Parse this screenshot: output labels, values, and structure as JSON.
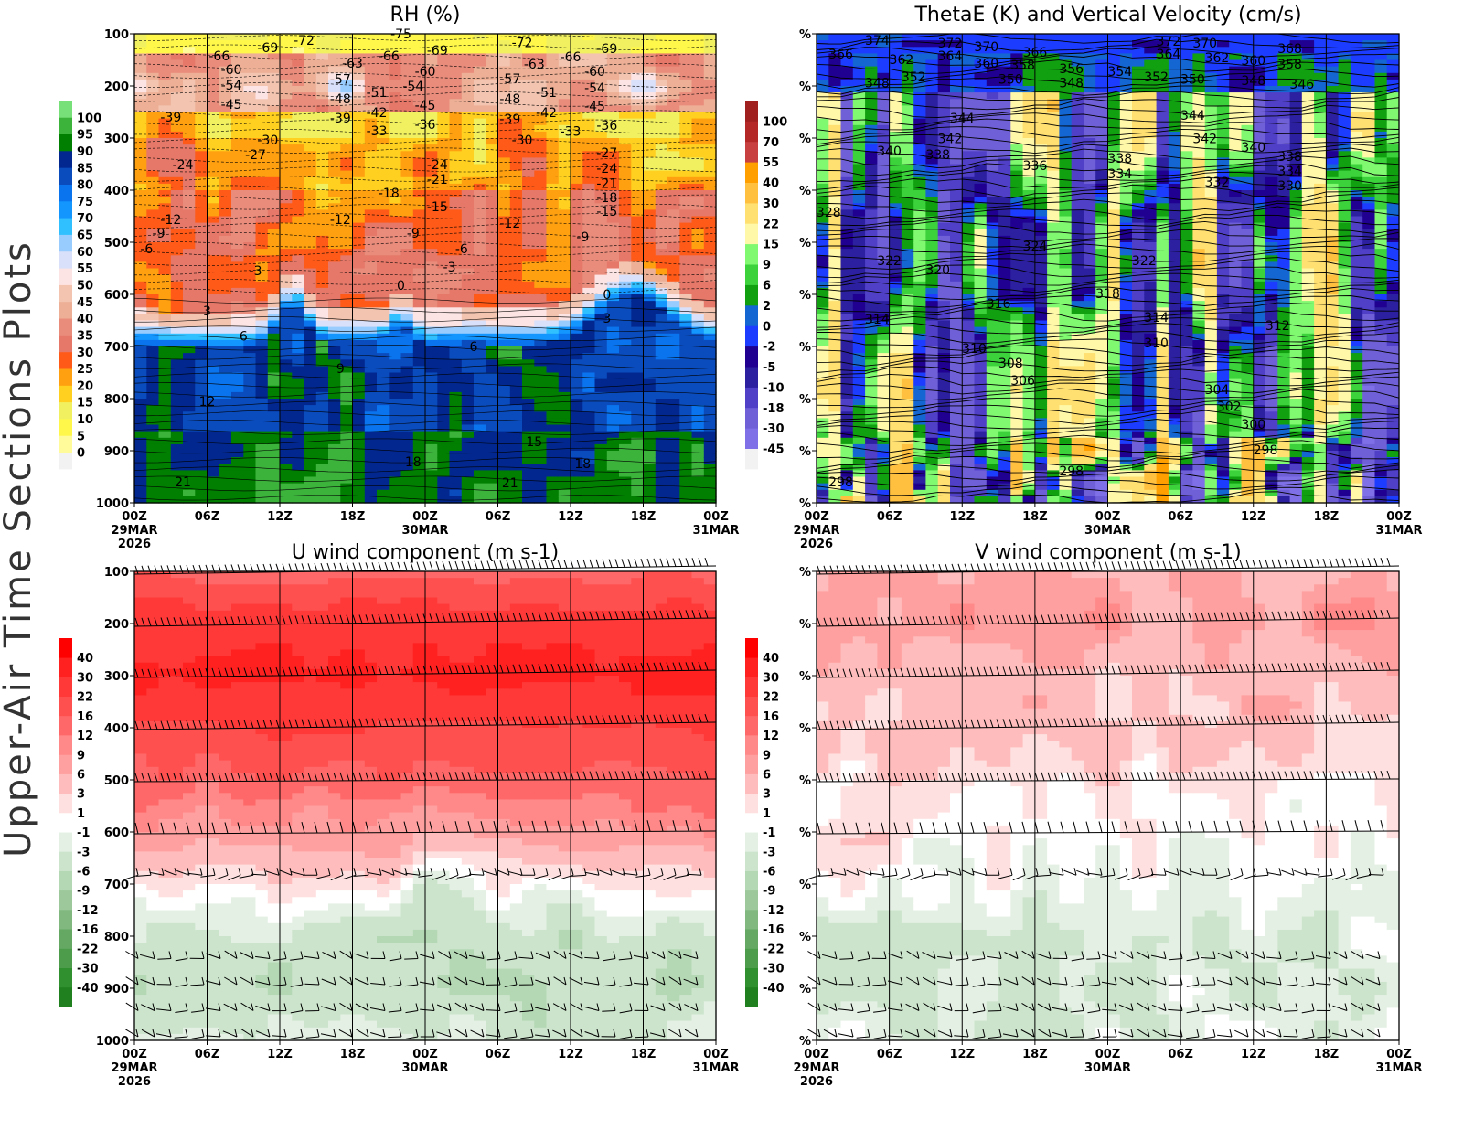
{
  "side_title": "Upper-Air Time Sections Plots",
  "x_ticks": [
    {
      "label": "00Z",
      "date": "29MAR",
      "year": "2026"
    },
    {
      "label": "06Z"
    },
    {
      "label": "12Z"
    },
    {
      "label": "18Z"
    },
    {
      "label": "00Z",
      "date": "30MAR"
    },
    {
      "label": "06Z"
    },
    {
      "label": "12Z"
    },
    {
      "label": "18Z"
    },
    {
      "label": "00Z",
      "date": "31MAR"
    }
  ],
  "pressure_levels": [
    100,
    200,
    300,
    400,
    500,
    600,
    700,
    800,
    900,
    1000
  ],
  "colors": {
    "contour": "#000000",
    "grid": "#000000"
  },
  "chart_data": [
    {
      "type": "heatmap",
      "title": "RH (%)",
      "field": "relative humidity",
      "overlay": "temperature contours (dashed below 0)",
      "ylim": [
        1000,
        100
      ],
      "y_tick_labels": [
        "100",
        "200",
        "300",
        "400",
        "500",
        "600",
        "700",
        "800",
        "900",
        "1000"
      ],
      "colorbar": {
        "levels": [
          0,
          5,
          10,
          15,
          20,
          25,
          30,
          35,
          40,
          45,
          50,
          55,
          60,
          65,
          70,
          75,
          80,
          85,
          90,
          95,
          100
        ],
        "colors": [
          "#f2f2f2",
          "#fffb9a",
          "#fff84a",
          "#f0f060",
          "#ffd020",
          "#ffa010",
          "#ff5a18",
          "#e57868",
          "#ea8c7c",
          "#edb096",
          "#f3c4b0",
          "#fde4e4",
          "#d8e0fa",
          "#98ccff",
          "#30c0ff",
          "#1496ff",
          "#0a74ee",
          "#0a4cbe",
          "#022890",
          "#007f00",
          "#3cb43c",
          "#78e078"
        ]
      },
      "contour_labels": [
        [
          "29 14Z",
          114,
          -72
        ],
        [
          "29 11Z",
          128,
          -69
        ],
        [
          "29 07Z",
          144,
          -66
        ],
        [
          "29 08Z",
          170,
          -60
        ],
        [
          "29 08Z",
          200,
          -54
        ],
        [
          "29 08Z",
          237,
          -45
        ],
        [
          "29 03Z",
          261,
          -39
        ],
        [
          "29 11Z",
          305,
          -30
        ],
        [
          "29 10Z",
          333,
          -27
        ],
        [
          "29 04Z",
          353,
          -24
        ],
        [
          "29 03Z",
          458,
          -12
        ],
        [
          "29 02Z",
          484,
          -9
        ],
        [
          "29 01Z",
          514,
          -6
        ],
        [
          "29 10Z",
          556,
          -3
        ],
        [
          "29 06Z",
          633,
          3
        ],
        [
          "29 09Z",
          682,
          6
        ],
        [
          "29 17Z",
          744,
          9
        ],
        [
          "29 06Z",
          807,
          12
        ],
        [
          "29 04Z",
          961,
          21
        ],
        [
          "29 18Z",
          158,
          -63
        ],
        [
          "29 17Z",
          189,
          -57
        ],
        [
          "29 17Z",
          226,
          -48
        ],
        [
          "29 17Z",
          263,
          -39
        ],
        [
          "29 20Z",
          214,
          -51
        ],
        [
          "29 20Z",
          253,
          -42
        ],
        [
          "29 20Z",
          288,
          -33
        ],
        [
          "29 21Z",
          144,
          -66
        ],
        [
          "29 22Z",
          102,
          -75
        ],
        [
          "30 01Z",
          133,
          -69
        ],
        [
          "30 00Z",
          174,
          -60
        ],
        [
          "29 23Z",
          202,
          -54
        ],
        [
          "30 00Z",
          239,
          -45
        ],
        [
          "30 00Z",
          275,
          -36
        ],
        [
          "30 01Z",
          353,
          -24
        ],
        [
          "30 01Z",
          381,
          -21
        ],
        [
          "29 21Z",
          407,
          -18
        ],
        [
          "30 01Z",
          433,
          -15
        ],
        [
          "29 17Z",
          458,
          -12
        ],
        [
          "29 23Z",
          484,
          -9
        ],
        [
          "30 03Z",
          514,
          -6
        ],
        [
          "30 02Z",
          549,
          -3
        ],
        [
          "29 22Z",
          584,
          0
        ],
        [
          "29 23Z",
          923,
          18
        ],
        [
          "30 04Z",
          702,
          6
        ],
        [
          "30 09Z",
          884,
          15
        ],
        [
          "30 07Z",
          963,
          21
        ],
        [
          "30 13Z",
          926,
          18
        ],
        [
          "30 15Z",
          602,
          0
        ],
        [
          "30 15Z",
          647,
          3
        ],
        [
          "30 08Z",
          118,
          -72
        ],
        [
          "30 07Z",
          188,
          -57
        ],
        [
          "30 07Z",
          226,
          -48
        ],
        [
          "30 07Z",
          265,
          -39
        ],
        [
          "30 08Z",
          305,
          -30
        ],
        [
          "30 09Z",
          160,
          -63
        ],
        [
          "30 10Z",
          214,
          -51
        ],
        [
          "30 10Z",
          253,
          -42
        ],
        [
          "30 12Z",
          289,
          -33
        ],
        [
          "30 12Z",
          146,
          -66
        ],
        [
          "30 14Z",
          174,
          -60
        ],
        [
          "30 14Z",
          205,
          -54
        ],
        [
          "30 14Z",
          240,
          -45
        ],
        [
          "30 15Z",
          277,
          -36
        ],
        [
          "30 15Z",
          330,
          -27
        ],
        [
          "30 15Z",
          360,
          -24
        ],
        [
          "30 15Z",
          389,
          -21
        ],
        [
          "30 15Z",
          416,
          -18
        ],
        [
          "30 15Z",
          442,
          -15
        ],
        [
          "30 13Z",
          491,
          -9
        ],
        [
          "30 07Z",
          465,
          -12
        ],
        [
          "30 15Z",
          130,
          -69
        ]
      ]
    },
    {
      "type": "heatmap",
      "title": "ThetaE (K) and Vertical Velocity (cm/s)",
      "field": "vertical velocity",
      "overlay": "equivalent potential temperature contours",
      "ylim": [
        1000,
        100
      ],
      "y_tick_labels": [
        "%",
        "%",
        "%",
        "%",
        "%",
        "%",
        "%",
        "%",
        "%",
        "%"
      ],
      "colorbar": {
        "levels": [
          -45,
          -30,
          -18,
          -10,
          -5,
          -2,
          0,
          2,
          6,
          9,
          15,
          22,
          30,
          40,
          55,
          70,
          100
        ],
        "colors": [
          "#f2f2f2",
          "#8070e8",
          "#7060d8",
          "#5040c8",
          "#2c20a0",
          "#200090",
          "#1c3cff",
          "#1466d2",
          "#10a010",
          "#3cd23c",
          "#80f870",
          "#fff8a8",
          "#ffe070",
          "#ffc040",
          "#ffa000",
          "#c84040",
          "#b42828",
          "#a02020"
        ]
      },
      "contour_labels": [
        [
          "29 05Z",
          114,
          374
        ],
        [
          "29 02Z",
          140,
          366
        ],
        [
          "29 07Z",
          151,
          362
        ],
        [
          "29 05Z",
          196,
          348
        ],
        [
          "29 08Z",
          184,
          352
        ],
        [
          "29 11Z",
          119,
          372
        ],
        [
          "29 14Z",
          126,
          370
        ],
        [
          "29 11Z",
          144,
          364
        ],
        [
          "29 14Z",
          158,
          360
        ],
        [
          "29 18Z",
          137,
          366
        ],
        [
          "29 17Z",
          161,
          358
        ],
        [
          "29 16Z",
          189,
          350
        ],
        [
          "29 21Z",
          168,
          356
        ],
        [
          "29 21Z",
          196,
          348
        ],
        [
          "30 01Z",
          174,
          354
        ],
        [
          "30 04Z",
          184,
          352
        ],
        [
          "30 07Z",
          189,
          350
        ],
        [
          "30 05Z",
          116,
          372
        ],
        [
          "30 08Z",
          119,
          370
        ],
        [
          "30 05Z",
          140,
          364
        ],
        [
          "30 09Z",
          147,
          362
        ],
        [
          "30 12Z",
          153,
          360
        ],
        [
          "30 15Z",
          130,
          368
        ],
        [
          "30 15Z",
          160,
          358
        ],
        [
          "30 12Z",
          191,
          348
        ],
        [
          "30 16Z",
          198,
          346
        ],
        [
          "29 12Z",
          263,
          344
        ],
        [
          "30 07Z",
          258,
          344
        ],
        [
          "29 11Z",
          303,
          342
        ],
        [
          "29 10Z",
          333,
          338
        ],
        [
          "29 06Z",
          326,
          340
        ],
        [
          "29 18Z",
          354,
          336
        ],
        [
          "30 01Z",
          340,
          338
        ],
        [
          "30 01Z",
          370,
          334
        ],
        [
          "30 08Z",
          303,
          342
        ],
        [
          "30 12Z",
          319,
          340
        ],
        [
          "30 15Z",
          337,
          338
        ],
        [
          "30 15Z",
          365,
          334
        ],
        [
          "30 15Z",
          393,
          330
        ],
        [
          "30 09Z",
          386,
          332
        ],
        [
          "29 01Z",
          444,
          328
        ],
        [
          "29 18Z",
          509,
          324
        ],
        [
          "29 06Z",
          537,
          322
        ],
        [
          "29 10Z",
          554,
          320
        ],
        [
          "30 03Z",
          537,
          322
        ],
        [
          "29 15Z",
          619,
          316
        ],
        [
          "30 00Z",
          600,
          318
        ],
        [
          "29 05Z",
          649,
          314
        ],
        [
          "30 04Z",
          646,
          314
        ],
        [
          "30 14Z",
          661,
          312
        ],
        [
          "29 13Z",
          705,
          310
        ],
        [
          "30 04Z",
          695,
          310
        ],
        [
          "29 16Z",
          733,
          308
        ],
        [
          "29 17Z",
          767,
          306
        ],
        [
          "30 09Z",
          784,
          304
        ],
        [
          "30 10Z",
          817,
          302
        ],
        [
          "30 12Z",
          851,
          300
        ],
        [
          "30 13Z",
          900,
          298
        ],
        [
          "29 02Z",
          961,
          298
        ],
        [
          "29 21Z",
          940,
          298
        ]
      ]
    },
    {
      "type": "heatmap",
      "title": "U wind component (m s-1)",
      "field": "u wind",
      "overlay": "wind barbs",
      "ylim": [
        1000,
        100
      ],
      "y_tick_labels": [
        "100",
        "200",
        "300",
        "400",
        "500",
        "600",
        "700",
        "800",
        "900",
        "1000"
      ],
      "profile": {
        "pressure": [
          100,
          200,
          300,
          400,
          500,
          600,
          650,
          700,
          750,
          800,
          900,
          1000
        ],
        "value": [
          14,
          26,
          32,
          22,
          14,
          8,
          4,
          1,
          -2,
          -5,
          -6,
          -3
        ]
      },
      "colorbar": {
        "levels": [
          -40,
          -30,
          -22,
          -16,
          -12,
          -9,
          -6,
          -3,
          -1,
          1,
          3,
          6,
          9,
          12,
          16,
          22,
          30,
          40
        ],
        "colors": [
          "#208020",
          "#309030",
          "#4c9c4c",
          "#64a864",
          "#80b880",
          "#9cc89c",
          "#b4d8b4",
          "#cce4cc",
          "#e4f0e4",
          "#ffffff",
          "#ffe0e0",
          "#ffbcbc",
          "#ffa0a0",
          "#ff8888",
          "#ff6868",
          "#ff5050",
          "#ff3838",
          "#ff2020",
          "#ff0000"
        ]
      }
    },
    {
      "type": "heatmap",
      "title": "V wind component (m s-1)",
      "field": "v wind",
      "overlay": "wind barbs",
      "ylim": [
        1000,
        100
      ],
      "y_tick_labels": [
        "%",
        "%",
        "%",
        "%",
        "%",
        "%",
        "%",
        "%",
        "%",
        "%"
      ],
      "profile": {
        "pressure": [
          100,
          200,
          300,
          400,
          500,
          600,
          700,
          800,
          900,
          1000
        ],
        "value": [
          6,
          8,
          5,
          4,
          2,
          1,
          -1,
          -3,
          -3,
          -2
        ]
      },
      "colorbar": {
        "levels": [
          -40,
          -30,
          -22,
          -16,
          -12,
          -9,
          -6,
          -3,
          -1,
          1,
          3,
          6,
          9,
          12,
          16,
          22,
          30,
          40
        ],
        "colors": [
          "#208020",
          "#309030",
          "#4c9c4c",
          "#64a864",
          "#80b880",
          "#9cc89c",
          "#b4d8b4",
          "#cce4cc",
          "#e4f0e4",
          "#ffffff",
          "#ffe0e0",
          "#ffbcbc",
          "#ffa0a0",
          "#ff8888",
          "#ff6868",
          "#ff5050",
          "#ff3838",
          "#ff2020",
          "#ff0000"
        ]
      }
    }
  ]
}
